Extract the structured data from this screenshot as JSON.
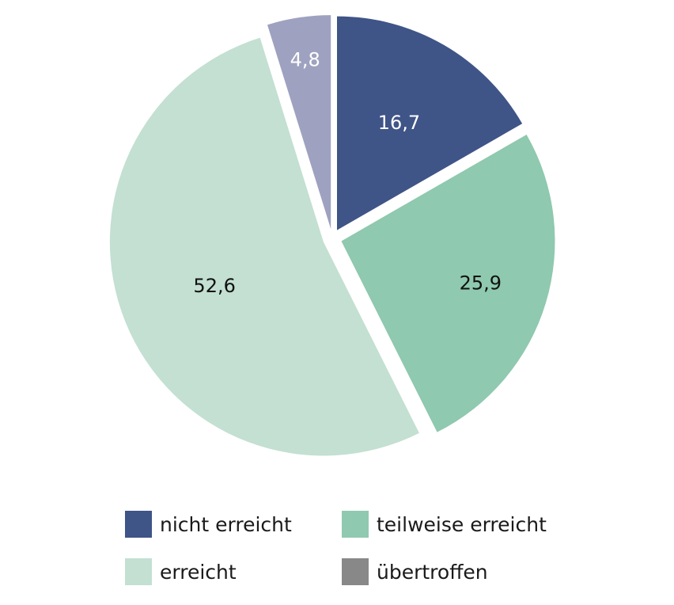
{
  "chart_data": {
    "type": "pie",
    "slices": [
      {
        "label": "nicht erreicht",
        "value": 16.7,
        "value_text": "16,7",
        "color": "#3f5487",
        "label_color": "#ffffff"
      },
      {
        "label": "teilweise erreicht",
        "value": 25.9,
        "value_text": "25,9",
        "color": "#8fc9af",
        "label_color": "#111111"
      },
      {
        "label": "erreicht",
        "value": 52.6,
        "value_text": "52,6",
        "color": "#c3e0d2",
        "label_color": "#111111"
      },
      {
        "label": "übertroffen",
        "value": 4.8,
        "value_text": "4,8",
        "color": "#9ea2c0",
        "label_color": "#ffffff"
      }
    ],
    "start_angle": "12 o'clock",
    "direction": "clockwise",
    "exploded": true,
    "legend_position": "bottom"
  },
  "legend": {
    "items": [
      {
        "label": "nicht erreicht",
        "color": "#3f5487"
      },
      {
        "label": "teilweise erreicht",
        "color": "#8fc9af"
      },
      {
        "label": "erreicht",
        "color": "#c3e0d2"
      },
      {
        "label": "übertroffen",
        "color": "#888888"
      }
    ]
  }
}
